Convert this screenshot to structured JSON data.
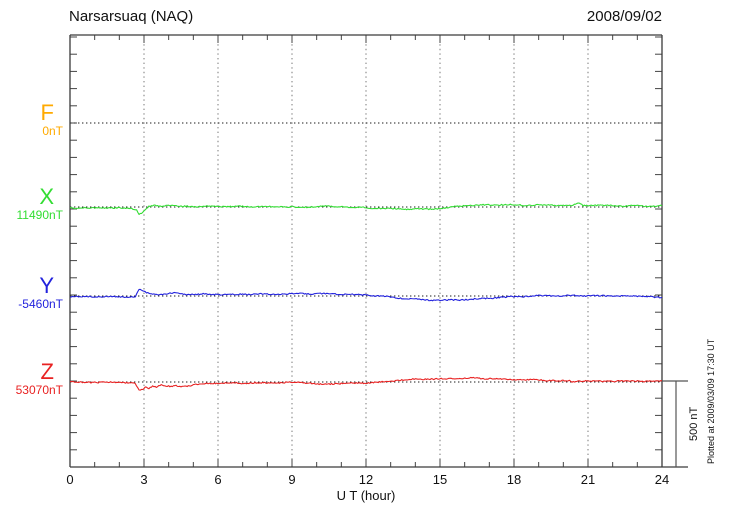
{
  "header": {
    "title": "Narsarsuaq (NAQ)",
    "date": "2008/09/02"
  },
  "chart_data": {
    "type": "line",
    "title": "Narsarsuaq (NAQ)",
    "date": "2008/09/02",
    "xlabel": "U T (hour)",
    "x_range": [
      0,
      24
    ],
    "x_ticks": [
      0,
      3,
      6,
      9,
      12,
      15,
      18,
      21,
      24
    ],
    "x_minor_tick_hours": 1,
    "y_minor_tick_nT": 100,
    "scale_bar": {
      "label": "500 nT",
      "nT": 500
    },
    "plotted_at": "Plotted at 2009/03/09 17:30 UT",
    "series": [
      {
        "name": "F",
        "offset_label": "0nT",
        "baseline_nT": 0,
        "color": "#FFAA00",
        "trace_visible": false,
        "points": []
      },
      {
        "name": "X",
        "offset_label": "11490nT",
        "baseline_nT": 11490,
        "color": "#33DD33",
        "trace_visible": true,
        "points": [
          [
            0,
            -5
          ],
          [
            0.7,
            -6
          ],
          [
            1.4,
            -5
          ],
          [
            2,
            -6
          ],
          [
            2.5,
            -7
          ],
          [
            2.7,
            -14
          ],
          [
            2.8,
            -40
          ],
          [
            2.95,
            -32
          ],
          [
            3.05,
            -14
          ],
          [
            3.2,
            2
          ],
          [
            3.35,
            7
          ],
          [
            3.5,
            9
          ],
          [
            3.65,
            4
          ],
          [
            3.8,
            8
          ],
          [
            4,
            11
          ],
          [
            4.2,
            7
          ],
          [
            4.5,
            3
          ],
          [
            4.8,
            5
          ],
          [
            5.2,
            2
          ],
          [
            5.6,
            4
          ],
          [
            6,
            2
          ],
          [
            6.5,
            3
          ],
          [
            7,
            2
          ],
          [
            7.5,
            3
          ],
          [
            8,
            1
          ],
          [
            8.5,
            2
          ],
          [
            9,
            1
          ],
          [
            9.4,
            -3
          ],
          [
            9.7,
            -1
          ],
          [
            10,
            4
          ],
          [
            10.3,
            6
          ],
          [
            10.7,
            3
          ],
          [
            11,
            2
          ],
          [
            11.5,
            -1
          ],
          [
            12,
            -5
          ],
          [
            12.5,
            -8
          ],
          [
            13,
            -10
          ],
          [
            13.5,
            -12
          ],
          [
            14,
            -11
          ],
          [
            14.5,
            -13
          ],
          [
            15,
            -9
          ],
          [
            15.4,
            -2
          ],
          [
            15.7,
            6
          ],
          [
            16,
            7
          ],
          [
            16.5,
            10
          ],
          [
            17,
            12
          ],
          [
            17.5,
            13
          ],
          [
            18,
            12
          ],
          [
            18.5,
            10
          ],
          [
            19,
            12
          ],
          [
            19.5,
            10
          ],
          [
            20,
            9
          ],
          [
            20.4,
            10
          ],
          [
            20.6,
            24
          ],
          [
            20.8,
            9
          ],
          [
            21.2,
            11
          ],
          [
            21.6,
            8
          ],
          [
            22,
            9
          ],
          [
            22.5,
            6
          ],
          [
            23,
            8
          ],
          [
            23.5,
            5
          ],
          [
            24,
            8
          ]
        ]
      },
      {
        "name": "Y",
        "offset_label": "-5460nT",
        "baseline_nT": -5460,
        "color": "#2222DD",
        "trace_visible": true,
        "points": [
          [
            0,
            -3
          ],
          [
            0.6,
            -4
          ],
          [
            1.2,
            -3
          ],
          [
            1.8,
            -4
          ],
          [
            2.4,
            -4
          ],
          [
            2.65,
            -2
          ],
          [
            2.8,
            36
          ],
          [
            2.95,
            30
          ],
          [
            3.1,
            18
          ],
          [
            3.3,
            11
          ],
          [
            3.6,
            9
          ],
          [
            3.9,
            12
          ],
          [
            4.1,
            16
          ],
          [
            4.3,
            18
          ],
          [
            4.6,
            11
          ],
          [
            5,
            9
          ],
          [
            5.5,
            11
          ],
          [
            6,
            9
          ],
          [
            6.5,
            8
          ],
          [
            7,
            10
          ],
          [
            7.5,
            11
          ],
          [
            8,
            10
          ],
          [
            8.6,
            12
          ],
          [
            9.2,
            14
          ],
          [
            9.8,
            13
          ],
          [
            10.4,
            14
          ],
          [
            11,
            11
          ],
          [
            11.6,
            8
          ],
          [
            12.2,
            4
          ],
          [
            12.8,
            -3
          ],
          [
            13.4,
            -12
          ],
          [
            14,
            -20
          ],
          [
            14.6,
            -24
          ],
          [
            15.2,
            -25
          ],
          [
            15.8,
            -22
          ],
          [
            16.4,
            -18
          ],
          [
            17,
            -12
          ],
          [
            17.6,
            -7
          ],
          [
            18.2,
            -3
          ],
          [
            18.8,
            0
          ],
          [
            19.4,
            2
          ],
          [
            20,
            1
          ],
          [
            20.6,
            2
          ],
          [
            21.2,
            1
          ],
          [
            21.8,
            0
          ],
          [
            22.4,
            1
          ],
          [
            23,
            -1
          ],
          [
            23.5,
            -3
          ],
          [
            23.8,
            -10
          ],
          [
            24,
            -8
          ]
        ]
      },
      {
        "name": "Z",
        "offset_label": "53070nT",
        "baseline_nT": 53070,
        "color": "#E82222",
        "trace_visible": true,
        "points": [
          [
            0,
            0
          ],
          [
            0.6,
            -2
          ],
          [
            1.2,
            -1
          ],
          [
            1.8,
            -2
          ],
          [
            2.4,
            -3
          ],
          [
            2.65,
            -10
          ],
          [
            2.8,
            -50
          ],
          [
            2.95,
            -44
          ],
          [
            3.05,
            -28
          ],
          [
            3.2,
            -36
          ],
          [
            3.35,
            -22
          ],
          [
            3.5,
            -28
          ],
          [
            3.7,
            -16
          ],
          [
            3.9,
            -24
          ],
          [
            4.1,
            -27
          ],
          [
            4.3,
            -22
          ],
          [
            4.6,
            -26
          ],
          [
            4.9,
            -20
          ],
          [
            5.2,
            -13
          ],
          [
            5.6,
            -9
          ],
          [
            6,
            -7
          ],
          [
            6.5,
            -5
          ],
          [
            7,
            -7
          ],
          [
            7.5,
            -5
          ],
          [
            8,
            -6
          ],
          [
            8.5,
            -4
          ],
          [
            9,
            -2
          ],
          [
            9.3,
            -1
          ],
          [
            9.7,
            -5
          ],
          [
            10,
            -12
          ],
          [
            10.3,
            -14
          ],
          [
            10.7,
            -10
          ],
          [
            11,
            -8
          ],
          [
            11.5,
            -7
          ],
          [
            12,
            -5
          ],
          [
            12.5,
            -1
          ],
          [
            13,
            5
          ],
          [
            13.5,
            13
          ],
          [
            14,
            16
          ],
          [
            14.5,
            18
          ],
          [
            15,
            17
          ],
          [
            15.5,
            20
          ],
          [
            16,
            22
          ],
          [
            16.3,
            24
          ],
          [
            16.7,
            20
          ],
          [
            17,
            21
          ],
          [
            17.5,
            17
          ],
          [
            18,
            15
          ],
          [
            18.5,
            13
          ],
          [
            19,
            11
          ],
          [
            19.5,
            9
          ],
          [
            20,
            7
          ],
          [
            20.25,
            6
          ],
          [
            20.35,
            -3
          ],
          [
            20.5,
            7
          ],
          [
            21,
            6
          ],
          [
            21.5,
            4
          ],
          [
            22,
            6
          ],
          [
            22.5,
            4
          ],
          [
            23,
            6
          ],
          [
            23.5,
            4
          ],
          [
            24,
            6
          ]
        ]
      }
    ]
  }
}
